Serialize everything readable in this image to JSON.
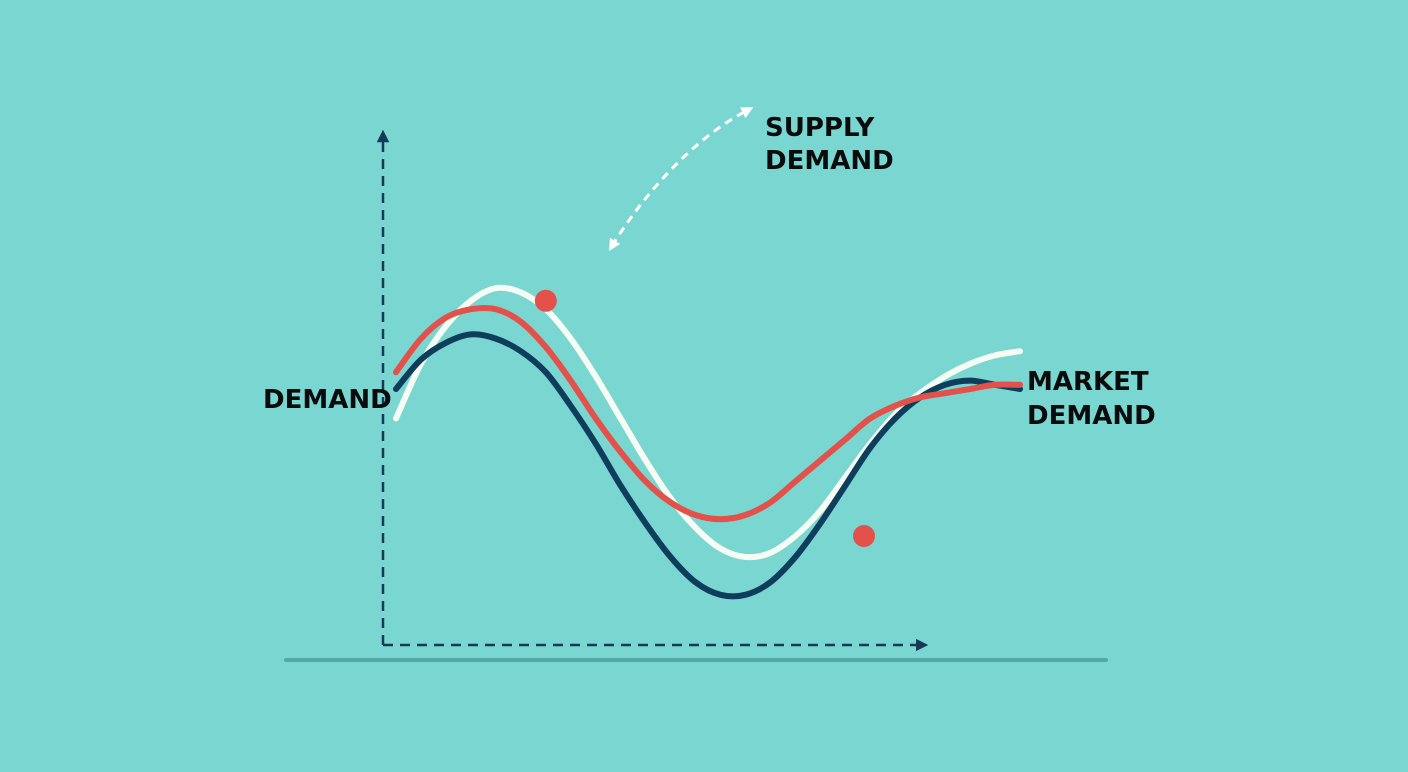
{
  "colors": {
    "background": "#79d6d0",
    "axis": "#153a55",
    "baseline": "#4a9e9a",
    "white_curve": "#f6fbf4",
    "navy_curve": "#0f3d5c",
    "red_curve": "#e4504a",
    "label_text": "#0b0b0b"
  },
  "labels": {
    "supply_demand_line1": "SUPPLY",
    "supply_demand_line2": "DEMAND",
    "demand": "DEMAND",
    "market_demand_line1": "MARKET",
    "market_demand_line2": "DEMAND"
  },
  "chart_data": {
    "type": "line",
    "title": "",
    "xlabel": "",
    "ylabel": "",
    "xlim": [
      0,
      10
    ],
    "ylim": [
      0,
      10
    ],
    "grid": false,
    "series": [
      {
        "key": "white",
        "color": "#f6fbf4",
        "x": [
          0,
          0.4,
          0.8,
          1.2,
          1.6,
          2.0,
          2.4,
          2.8,
          3.2,
          3.6,
          4.0,
          4.4,
          4.8,
          5.2,
          5.6,
          6.0,
          6.4,
          6.8,
          7.2,
          7.6,
          8.0,
          8.4,
          8.8,
          9.2,
          9.6,
          10.0
        ],
        "y": [
          4.8,
          6.1,
          7.0,
          7.6,
          7.9,
          7.8,
          7.4,
          6.7,
          5.8,
          4.8,
          3.8,
          2.9,
          2.2,
          1.7,
          1.5,
          1.6,
          2.0,
          2.6,
          3.4,
          4.2,
          4.9,
          5.4,
          5.8,
          6.1,
          6.3,
          6.4
        ]
      },
      {
        "key": "navy",
        "color": "#0f3d5c",
        "x": [
          0,
          0.4,
          0.8,
          1.2,
          1.6,
          2.0,
          2.4,
          2.8,
          3.2,
          3.6,
          4.0,
          4.4,
          4.8,
          5.2,
          5.6,
          6.0,
          6.4,
          6.8,
          7.2,
          7.6,
          8.0,
          8.4,
          8.8,
          9.2,
          9.6,
          10.0
        ],
        "y": [
          5.5,
          6.2,
          6.6,
          6.8,
          6.7,
          6.4,
          5.9,
          5.1,
          4.2,
          3.2,
          2.3,
          1.5,
          0.9,
          0.6,
          0.6,
          0.9,
          1.5,
          2.3,
          3.2,
          4.1,
          4.8,
          5.3,
          5.6,
          5.7,
          5.6,
          5.5
        ]
      },
      {
        "key": "red",
        "color": "#e4504a",
        "x": [
          0,
          0.4,
          0.8,
          1.2,
          1.6,
          2.0,
          2.4,
          2.8,
          3.2,
          3.6,
          4.0,
          4.4,
          4.8,
          5.2,
          5.6,
          6.0,
          6.4,
          6.8,
          7.2,
          7.6,
          8.0,
          8.4,
          8.8,
          9.2,
          9.6,
          10.0
        ],
        "y": [
          5.9,
          6.7,
          7.2,
          7.4,
          7.4,
          7.1,
          6.5,
          5.7,
          4.8,
          4.0,
          3.3,
          2.8,
          2.5,
          2.4,
          2.5,
          2.8,
          3.3,
          3.8,
          4.3,
          4.8,
          5.1,
          5.3,
          5.4,
          5.5,
          5.6,
          5.6
        ],
        "points": [
          {
            "x": 2.4,
            "y": 7.6
          },
          {
            "x": 7.5,
            "y": 2.0
          }
        ]
      }
    ]
  }
}
